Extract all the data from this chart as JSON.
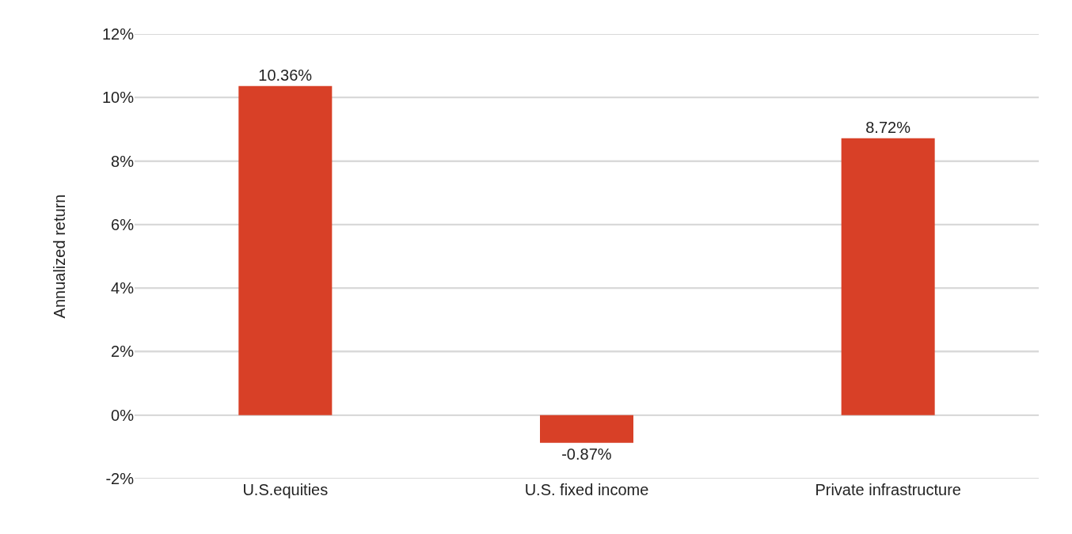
{
  "chart_data": {
    "type": "bar",
    "ylabel": "Annualized return",
    "categories": [
      "U.S.equities",
      "U.S. fixed income",
      "Private infrastructure"
    ],
    "values": [
      10.36,
      -0.87,
      8.72
    ],
    "value_labels": [
      "10.36%",
      "-0.87%",
      "8.72%"
    ],
    "color": "#d84027",
    "ylim": [
      -2,
      12
    ],
    "yticks": [
      {
        "value": -2,
        "label": "-2%"
      },
      {
        "value": 0,
        "label": "0%"
      },
      {
        "value": 2,
        "label": "2%"
      },
      {
        "value": 4,
        "label": "4%"
      },
      {
        "value": 6,
        "label": "6%"
      },
      {
        "value": 8,
        "label": "8%"
      },
      {
        "value": 10,
        "label": "10%"
      },
      {
        "value": 12,
        "label": "12%"
      }
    ],
    "grid": "y"
  }
}
